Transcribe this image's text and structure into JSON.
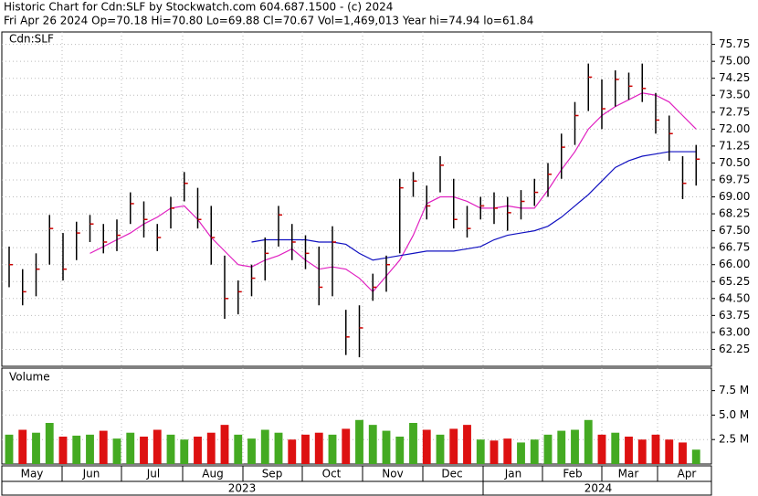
{
  "chart_data": {
    "type": "ohlc",
    "title": "Historic Chart for Cdn:SLF by Stockwatch.com 604.687.1500 - (c) 2024",
    "subtitle": "Fri Apr 26 2024   Op=70.18   Hi=70.80   Lo=69.88   Cl=70.67   Vol=1,469,013   Year hi=74.94   lo=61.84",
    "symbol": "Cdn:SLF",
    "volume_label": "Volume",
    "months": [
      "May",
      "Jun",
      "Jul",
      "Aug",
      "Sep",
      "Oct",
      "Nov",
      "Dec",
      "Jan",
      "Feb",
      "Mar",
      "Apr"
    ],
    "years": [
      "2023",
      "2024"
    ],
    "bar_color": "#000000",
    "close_color": "#cc0000",
    "high": [
      66.8,
      65.8,
      66.5,
      68.2,
      67.4,
      67.9,
      68.2,
      67.8,
      68.0,
      69.2,
      68.8,
      67.8,
      69.0,
      70.1,
      69.4,
      68.6,
      66.4,
      65.3,
      66.0,
      67.2,
      68.6,
      67.8,
      67.3,
      66.8,
      67.7,
      64.0,
      64.2,
      65.6,
      66.4,
      69.8,
      70.1,
      69.5,
      70.8,
      69.8,
      68.6,
      69.0,
      69.2,
      69.0,
      69.3,
      69.8,
      70.5,
      71.8,
      73.2,
      74.9,
      74.2,
      74.6,
      74.5,
      74.9,
      73.6,
      72.6,
      70.8,
      71.3
    ],
    "low": [
      65.0,
      64.2,
      64.6,
      66.0,
      65.3,
      66.2,
      67.0,
      66.5,
      66.6,
      67.8,
      67.2,
      66.6,
      67.6,
      68.8,
      67.6,
      66.0,
      63.6,
      63.8,
      64.6,
      65.3,
      66.8,
      66.2,
      65.8,
      64.2,
      64.6,
      62.0,
      61.9,
      64.4,
      64.8,
      66.5,
      69.0,
      68.0,
      69.2,
      67.6,
      67.2,
      68.0,
      67.8,
      67.5,
      68.0,
      68.6,
      69.0,
      69.8,
      71.3,
      72.8,
      72.0,
      73.0,
      73.3,
      73.2,
      71.8,
      70.6,
      68.9,
      69.5
    ],
    "close": [
      66.0,
      64.8,
      65.8,
      67.6,
      65.8,
      67.4,
      67.8,
      67.0,
      67.3,
      68.7,
      68.0,
      67.2,
      68.5,
      69.6,
      68.0,
      67.2,
      64.5,
      64.8,
      65.4,
      66.5,
      68.2,
      67.0,
      66.5,
      65.0,
      67.0,
      62.8,
      63.2,
      65.0,
      66.0,
      69.4,
      69.7,
      68.6,
      70.4,
      68.0,
      67.6,
      68.6,
      68.5,
      68.3,
      68.8,
      69.2,
      70.0,
      71.2,
      72.6,
      74.3,
      72.9,
      74.2,
      73.9,
      73.8,
      72.4,
      71.8,
      69.6,
      70.67
    ],
    "series": [
      {
        "name": "ma20",
        "color": "#e020c0",
        "values": [
          null,
          null,
          null,
          null,
          null,
          null,
          66.5,
          66.8,
          67.1,
          67.4,
          67.8,
          68.1,
          68.5,
          68.6,
          68.0,
          67.2,
          66.6,
          66.0,
          65.9,
          66.2,
          66.4,
          66.7,
          66.2,
          65.8,
          65.9,
          65.8,
          65.4,
          64.8,
          65.5,
          66.2,
          67.3,
          68.7,
          69.0,
          69.0,
          68.8,
          68.5,
          68.5,
          68.6,
          68.5,
          68.5,
          69.3,
          70.2,
          71.0,
          72.0,
          72.6,
          73.0,
          73.3,
          73.6,
          73.5,
          73.2,
          72.6,
          72.0
        ]
      },
      {
        "name": "ma50",
        "color": "#1010c0",
        "values": [
          null,
          null,
          null,
          null,
          null,
          null,
          null,
          null,
          null,
          null,
          null,
          null,
          null,
          null,
          null,
          null,
          null,
          null,
          67.0,
          67.1,
          67.1,
          67.1,
          67.1,
          67.0,
          67.0,
          66.9,
          66.5,
          66.2,
          66.3,
          66.4,
          66.5,
          66.6,
          66.6,
          66.6,
          66.7,
          66.8,
          67.1,
          67.3,
          67.4,
          67.5,
          67.7,
          68.1,
          68.6,
          69.1,
          69.7,
          70.3,
          70.6,
          70.8,
          70.9,
          71.0,
          71.0,
          71.0
        ]
      }
    ],
    "ylim": [
      61.5,
      76.3
    ],
    "yticks": [
      62.25,
      {
        "value": 63,
        "label": "63.00"
      },
      63.75,
      {
        "value": 64.5,
        "label": "64.50"
      },
      65.25,
      {
        "value": 66,
        "label": "66.00"
      },
      66.75,
      {
        "value": 67.5,
        "label": "67.50"
      },
      68.25,
      {
        "value": 69,
        "label": "69.00"
      },
      69.75,
      {
        "value": 70.5,
        "label": "70.50"
      },
      71.25,
      {
        "value": 72,
        "label": "72.00"
      },
      72.75,
      {
        "value": 73.5,
        "label": "73.50"
      },
      74.25,
      {
        "value": 75,
        "label": "75.00"
      },
      75.75
    ],
    "volume": [
      3.0,
      3.5,
      3.2,
      4.2,
      2.8,
      2.9,
      3.0,
      3.4,
      2.6,
      3.2,
      2.8,
      3.5,
      3.0,
      2.5,
      2.8,
      3.2,
      4.0,
      3.0,
      2.6,
      3.5,
      3.2,
      2.5,
      3.0,
      3.2,
      3.0,
      3.6,
      4.5,
      4.0,
      3.4,
      2.8,
      4.2,
      3.5,
      3.0,
      3.6,
      4.0,
      2.5,
      2.4,
      2.6,
      2.2,
      2.5,
      3.0,
      3.4,
      3.5,
      4.5,
      3.0,
      3.2,
      2.8,
      2.5,
      3.0,
      2.5,
      2.2,
      1.47
    ],
    "up_color": "#44aa22",
    "down_color": "#dd1111",
    "vol_ylim": [
      0,
      9.8
    ],
    "vol_yticks": [
      {
        "value": 2.5,
        "label": "2.5 M"
      },
      {
        "value": 5,
        "label": "5.0 M"
      },
      {
        "value": 7.5,
        "label": "7.5 M"
      }
    ],
    "grid": true
  }
}
